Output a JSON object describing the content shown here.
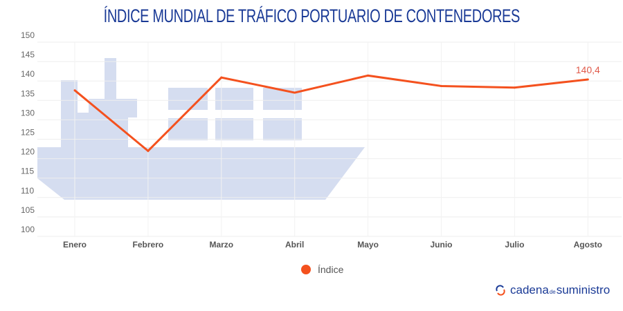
{
  "chart_data": {
    "type": "line",
    "title": "ÍNDICE MUNDIAL DE TRÁFICO PORTUARIO DE CONTENEDORES",
    "categories": [
      "Enero",
      "Febrero",
      "Marzo",
      "Abril",
      "Mayo",
      "Junio",
      "Julio",
      "Agosto"
    ],
    "series": [
      {
        "name": "Índice",
        "values": [
          137.6,
          122.0,
          140.9,
          137.0,
          141.4,
          138.7,
          138.3,
          140.4
        ],
        "color": "#f4511e"
      }
    ],
    "data_labels": [
      {
        "category": "Agosto",
        "text": "140,4"
      }
    ],
    "yticks": [
      100,
      105,
      110,
      115,
      120,
      125,
      130,
      135,
      140,
      145,
      150
    ],
    "ylim": [
      100,
      150
    ],
    "grid": true,
    "legend": "bottom",
    "background_image": "container-ship-silhouette",
    "ship_color": "#d5ddf0"
  },
  "brand": {
    "part1": "cadena",
    "part2": "de",
    "part3": "suministro",
    "icon": "refresh-arrows-icon"
  }
}
